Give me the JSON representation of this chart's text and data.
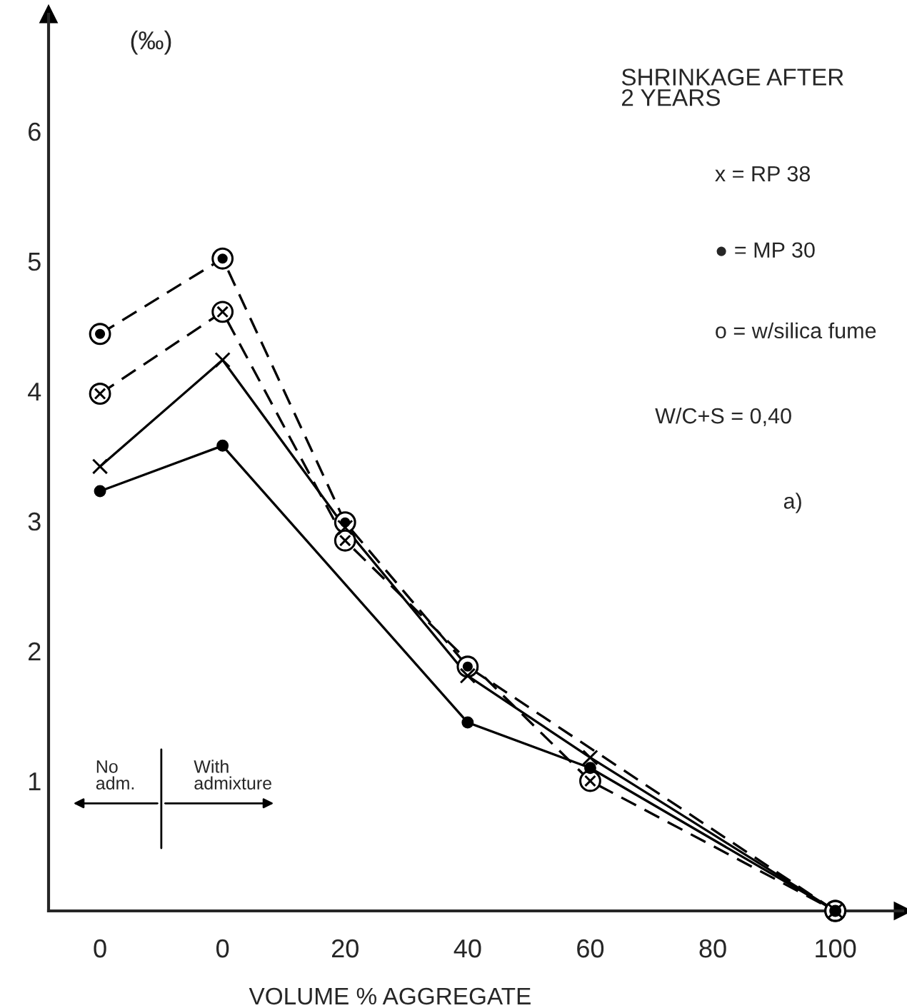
{
  "chart_data": {
    "type": "line",
    "title": "SHRINKAGE AFTER\n2 YEARS",
    "xlabel": "VOLUME % AGGREGATE",
    "ylabel": "(‰)",
    "categories": [
      "0",
      "0",
      "20",
      "40",
      "60",
      "80",
      "100"
    ],
    "series": [
      {
        "color": "#000000",
        "line_style": "dashed",
        "marker": "circle",
        "values": [
          4.44,
          5.02,
          2.99,
          1.88,
          null,
          null,
          0
        ]
      },
      {
        "color": "#000000",
        "line_style": "dashed",
        "marker": "cross",
        "values": [
          3.98,
          4.61,
          2.85,
          null,
          1.0,
          null,
          0
        ]
      },
      {
        "color": "#000000",
        "line_style": "solid",
        "marker": "cross",
        "values": [
          3.42,
          4.24,
          2.95,
          1.81,
          1.18,
          null,
          0
        ]
      },
      {
        "color": "#000000",
        "line_style": "solid",
        "marker": "circle",
        "values": [
          3.23,
          3.58,
          null,
          1.45,
          1.1,
          null,
          0
        ]
      }
    ],
    "ylim": [
      0,
      6.9
    ],
    "yticks": [
      1,
      2,
      3,
      4,
      5,
      6
    ],
    "grid": false,
    "legend": false,
    "annotations": [
      "x = RP 38",
      "● = MP 30",
      "o = w/silica fume",
      "W/C+S = 0,40",
      "a)",
      "No\nadm.",
      "With\nadmixture"
    ]
  }
}
